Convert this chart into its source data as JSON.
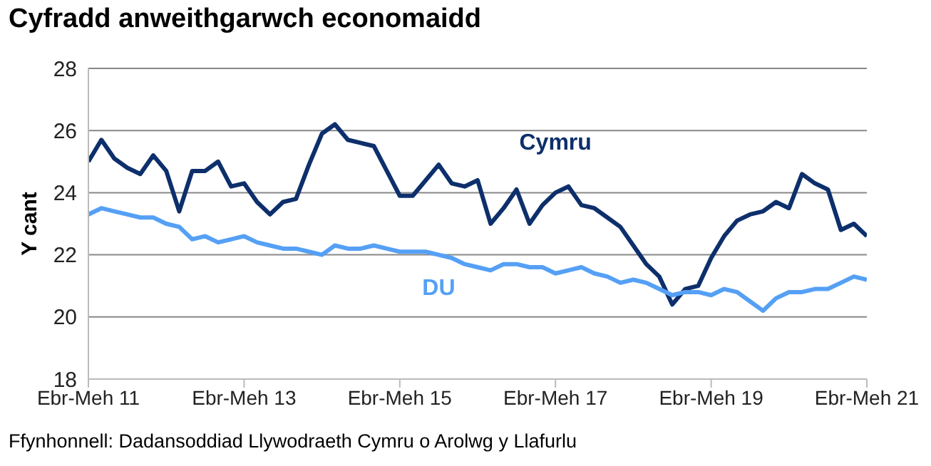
{
  "chart_data": {
    "type": "line",
    "title": "Cyfradd anweithgarwch economaidd",
    "ylabel": "Y cant",
    "annotations": [
      "Ffynhonnell: Dadansoddiad Llywodraeth Cymru o Arolwg y Llafurlu"
    ],
    "categories": [
      "Ebr-Meh 11",
      null,
      null,
      null,
      null,
      null,
      null,
      null,
      null,
      null,
      null,
      null,
      "Ebr-Meh 13",
      null,
      null,
      null,
      null,
      null,
      null,
      null,
      null,
      null,
      null,
      null,
      "Ebr-Meh 15",
      null,
      null,
      null,
      null,
      null,
      null,
      null,
      null,
      null,
      null,
      null,
      "Ebr-Meh 17",
      null,
      null,
      null,
      null,
      null,
      null,
      null,
      null,
      null,
      null,
      null,
      "Ebr-Meh 19",
      null,
      null,
      null,
      null,
      null,
      null,
      null,
      null,
      null,
      null,
      null,
      "Ebr-Meh 21"
    ],
    "series": [
      {
        "name": "Cymru",
        "color": "#0d2f6b",
        "values": [
          25.0,
          25.7,
          25.1,
          24.8,
          24.6,
          25.2,
          24.7,
          23.4,
          24.7,
          24.7,
          25.0,
          24.2,
          24.3,
          23.7,
          23.3,
          23.7,
          23.8,
          24.9,
          25.9,
          26.2,
          25.7,
          25.6,
          25.5,
          24.7,
          23.9,
          23.9,
          24.4,
          24.9,
          24.3,
          24.2,
          24.4,
          23.0,
          23.5,
          24.1,
          23.0,
          23.6,
          24.0,
          24.2,
          23.6,
          23.5,
          23.2,
          22.9,
          22.3,
          21.7,
          21.3,
          20.4,
          20.9,
          21.0,
          21.9,
          22.6,
          23.1,
          23.3,
          23.4,
          23.7,
          23.5,
          24.6,
          24.3,
          24.1,
          22.8,
          23.0,
          22.6
        ]
      },
      {
        "name": "DU",
        "color": "#55a0f5",
        "values": [
          23.3,
          23.5,
          23.4,
          23.3,
          23.2,
          23.2,
          23.0,
          22.9,
          22.5,
          22.6,
          22.4,
          22.5,
          22.6,
          22.4,
          22.3,
          22.2,
          22.2,
          22.1,
          22.0,
          22.3,
          22.2,
          22.2,
          22.3,
          22.2,
          22.1,
          22.1,
          22.1,
          22.0,
          21.9,
          21.7,
          21.6,
          21.5,
          21.7,
          21.7,
          21.6,
          21.6,
          21.4,
          21.5,
          21.6,
          21.4,
          21.3,
          21.1,
          21.2,
          21.1,
          20.9,
          20.7,
          20.8,
          20.8,
          20.7,
          20.9,
          20.8,
          20.5,
          20.2,
          20.6,
          20.8,
          20.8,
          20.9,
          20.9,
          21.1,
          21.3,
          21.2
        ]
      }
    ],
    "ylim": [
      18,
      28
    ],
    "yticks": [
      18,
      20,
      22,
      24,
      26,
      28
    ],
    "grid": "y",
    "legend": false,
    "marker": "none",
    "line_style": "solid"
  }
}
